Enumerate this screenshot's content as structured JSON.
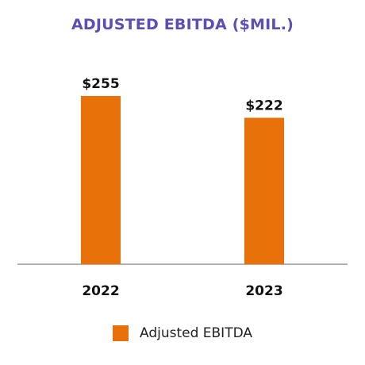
{
  "chart_data": {
    "type": "bar",
    "title": "ADJUSTED EBITDA ($MIL.)",
    "categories": [
      "2022",
      "2023"
    ],
    "series": [
      {
        "name": "Adjusted EBITDA",
        "values": [
          255,
          222
        ],
        "color": "#e8710a"
      }
    ],
    "data_labels": [
      "$255",
      "$222"
    ],
    "ylim": [
      0,
      255
    ],
    "grid": false,
    "legend_position": "bottom-center",
    "title_color": "#5b4fb5",
    "axis_color": "#999999"
  }
}
